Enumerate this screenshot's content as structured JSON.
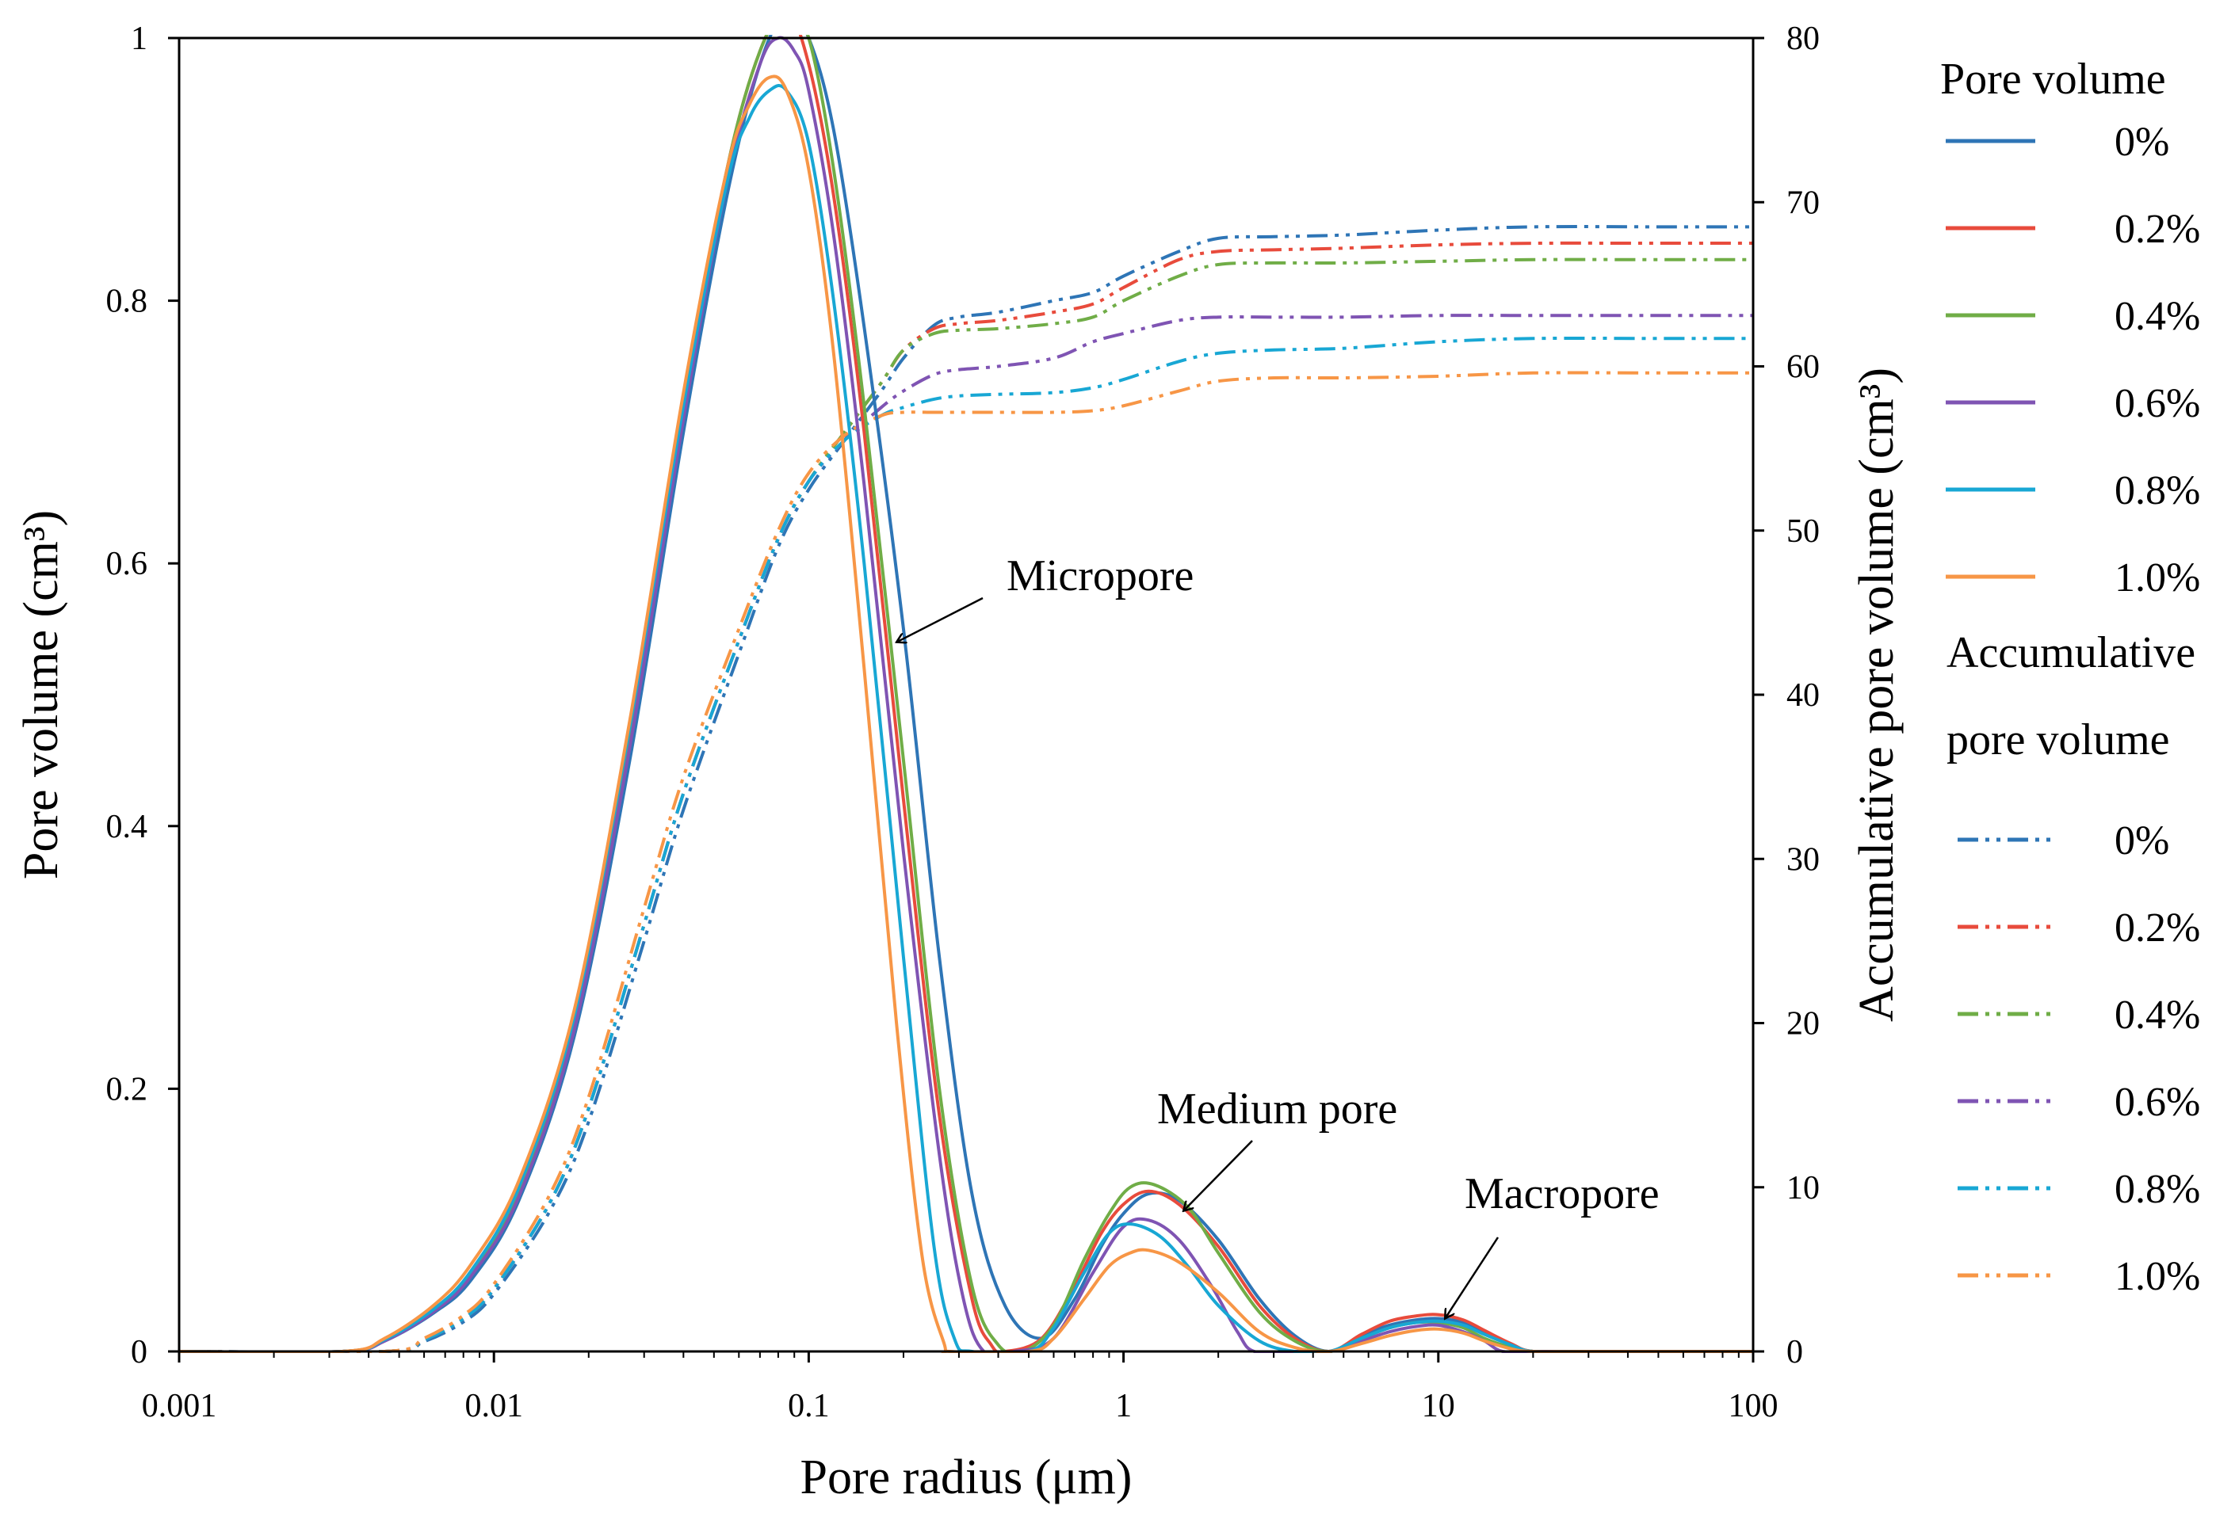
{
  "chart_data": {
    "type": "line",
    "xscale": "log",
    "xlabel": "Pore radius (μm)",
    "ylabel": "Pore volume (cm³)",
    "y2label": "Accumulative pore volume (cm³)",
    "xlim": [
      0.001,
      100
    ],
    "ylim": [
      0,
      1
    ],
    "y2lim": [
      0,
      80
    ],
    "x_ticks": [
      0.001,
      0.01,
      0.1,
      1,
      10,
      100
    ],
    "x_tick_labels": [
      "0.001",
      "0.01",
      "0.1",
      "1",
      "10",
      "100"
    ],
    "y_ticks": [
      0,
      0.2,
      0.4,
      0.6,
      0.8,
      1
    ],
    "y_tick_labels": [
      "0",
      "0.2",
      "0.4",
      "0.6",
      "0.8",
      "1"
    ],
    "y2_ticks": [
      0,
      10,
      20,
      30,
      40,
      50,
      60,
      70,
      80
    ],
    "y2_tick_labels": [
      "0",
      "10",
      "20",
      "30",
      "40",
      "50",
      "60",
      "70",
      "80"
    ],
    "legend": {
      "placement": "right",
      "pore_volume_title": "Pore volume",
      "accumulative_title_line1": "Accumulative",
      "accumulative_title_line2": "pore volume"
    },
    "annotations": [
      {
        "text": "Micropore",
        "points_to": {
          "x": 0.19,
          "y": 0.54
        }
      },
      {
        "text": "Medium pore",
        "points_to": {
          "x": 1.55,
          "y": 0.107
        }
      },
      {
        "text": "Macropore",
        "points_to": {
          "x": 10.5,
          "y": 0.025
        }
      }
    ],
    "series": [
      {
        "name": "0%",
        "color": "#2e75b6",
        "pore_volume": {
          "x": [
            0.001,
            0.0033,
            0.0045,
            0.0065,
            0.0085,
            0.012,
            0.018,
            0.027,
            0.04,
            0.055,
            0.07,
            0.085,
            0.1,
            0.12,
            0.15,
            0.2,
            0.26,
            0.33,
            0.42,
            0.55,
            0.7,
            0.85,
            1.0,
            1.2,
            1.5,
            2.0,
            2.7,
            3.5,
            4.5,
            5.7,
            7.0,
            8.5,
            10,
            12,
            14,
            17,
            20,
            30,
            100
          ],
          "y": [
            0,
            0,
            0.008,
            0.03,
            0.055,
            0.115,
            0.24,
            0.45,
            0.7,
            0.88,
            0.98,
            1.02,
            1.0,
            0.93,
            0.78,
            0.55,
            0.3,
            0.12,
            0.035,
            0.01,
            0.04,
            0.08,
            0.105,
            0.12,
            0.115,
            0.085,
            0.04,
            0.012,
            0,
            0.012,
            0.02,
            0.024,
            0.025,
            0.022,
            0.015,
            0.005,
            0,
            0,
            0
          ]
        },
        "accumulative": {
          "x": [
            0.001,
            0.0045,
            0.006,
            0.008,
            0.01,
            0.015,
            0.02,
            0.03,
            0.04,
            0.06,
            0.08,
            0.1,
            0.13,
            0.17,
            0.2,
            0.25,
            0.3,
            0.4,
            0.6,
            0.8,
            1.0,
            1.5,
            2.0,
            3.0,
            5,
            10,
            20,
            50,
            100
          ],
          "y": [
            0,
            0,
            0.6,
            1.8,
            3.5,
            8.5,
            14,
            25,
            33,
            42.5,
            49,
            52.5,
            55.5,
            58.5,
            60.5,
            62.5,
            63,
            63.3,
            64,
            64.5,
            65.5,
            67,
            67.8,
            67.9,
            68,
            68.3,
            68.5,
            68.5,
            68.5
          ]
        }
      },
      {
        "name": "0.2%",
        "color": "#e84b3c",
        "pore_volume": {
          "x": [
            0.001,
            0.0033,
            0.0045,
            0.0065,
            0.0085,
            0.012,
            0.018,
            0.027,
            0.04,
            0.055,
            0.07,
            0.085,
            0.1,
            0.12,
            0.15,
            0.2,
            0.26,
            0.33,
            0.38,
            0.42,
            0.55,
            0.7,
            0.85,
            1.0,
            1.2,
            1.5,
            2.0,
            2.7,
            3.5,
            4.5,
            5.7,
            7.0,
            8.5,
            10,
            12,
            14,
            17,
            20,
            30,
            100
          ],
          "y": [
            0,
            0,
            0.009,
            0.033,
            0.06,
            0.122,
            0.25,
            0.47,
            0.72,
            0.9,
            0.99,
            1.02,
            0.98,
            0.88,
            0.7,
            0.42,
            0.18,
            0.04,
            0.005,
            0,
            0.01,
            0.05,
            0.09,
            0.112,
            0.122,
            0.112,
            0.08,
            0.035,
            0.01,
            0,
            0.013,
            0.023,
            0.027,
            0.028,
            0.024,
            0.016,
            0.006,
            0,
            0,
            0
          ]
        },
        "accumulative": {
          "x": [
            0.001,
            0.0045,
            0.006,
            0.008,
            0.01,
            0.015,
            0.02,
            0.03,
            0.04,
            0.06,
            0.08,
            0.1,
            0.13,
            0.17,
            0.2,
            0.25,
            0.3,
            0.4,
            0.6,
            0.8,
            1.0,
            1.5,
            2.0,
            3.0,
            5,
            10,
            20,
            50,
            100
          ],
          "y": [
            0,
            0,
            0.7,
            2.0,
            3.8,
            9,
            14.8,
            26,
            34,
            43.3,
            49.5,
            53,
            56,
            59,
            61,
            62.3,
            62.6,
            62.8,
            63.3,
            63.8,
            64.8,
            66.5,
            67,
            67.1,
            67.2,
            67.4,
            67.5,
            67.5,
            67.5
          ]
        }
      },
      {
        "name": "0.4%",
        "color": "#70ad47",
        "pore_volume": {
          "x": [
            0.001,
            0.0033,
            0.0045,
            0.0065,
            0.0085,
            0.012,
            0.018,
            0.027,
            0.04,
            0.055,
            0.07,
            0.085,
            0.1,
            0.12,
            0.15,
            0.2,
            0.26,
            0.33,
            0.4,
            0.48,
            0.6,
            0.75,
            0.9,
            1.05,
            1.25,
            1.6,
            2.0,
            2.7,
            3.5,
            4.5,
            5.7,
            7.0,
            8.5,
            10,
            12,
            14,
            17,
            20,
            30,
            100
          ],
          "y": [
            0,
            0,
            0.009,
            0.033,
            0.06,
            0.122,
            0.25,
            0.47,
            0.72,
            0.9,
            0.99,
            1.02,
            1.0,
            0.9,
            0.72,
            0.45,
            0.2,
            0.05,
            0.005,
            0,
            0.02,
            0.07,
            0.105,
            0.125,
            0.127,
            0.11,
            0.075,
            0.03,
            0.008,
            0,
            0.01,
            0.018,
            0.022,
            0.022,
            0.018,
            0.01,
            0.003,
            0,
            0,
            0
          ]
        },
        "accumulative": {
          "x": [
            0.001,
            0.0045,
            0.006,
            0.008,
            0.01,
            0.015,
            0.02,
            0.03,
            0.04,
            0.06,
            0.08,
            0.1,
            0.13,
            0.17,
            0.2,
            0.25,
            0.3,
            0.4,
            0.6,
            0.8,
            1.0,
            1.5,
            2.0,
            3.0,
            5,
            10,
            20,
            50,
            100
          ],
          "y": [
            0,
            0,
            0.7,
            2.0,
            3.8,
            9,
            14.8,
            26,
            34,
            43.3,
            49.5,
            53,
            56,
            59,
            61,
            62,
            62.2,
            62.3,
            62.6,
            63,
            64,
            65.5,
            66.2,
            66.3,
            66.3,
            66.4,
            66.5,
            66.5,
            66.5
          ]
        }
      },
      {
        "name": "0.6%",
        "color": "#7f54b3",
        "pore_volume": {
          "x": [
            0.001,
            0.0033,
            0.0045,
            0.0065,
            0.0085,
            0.012,
            0.018,
            0.027,
            0.04,
            0.055,
            0.07,
            0.08,
            0.09,
            0.1,
            0.12,
            0.15,
            0.2,
            0.26,
            0.31,
            0.36,
            0.45,
            0.6,
            0.8,
            1.0,
            1.2,
            1.5,
            1.9,
            2.3,
            2.6,
            3.5,
            4.5,
            5.7,
            7.0,
            8.5,
            10,
            12,
            14,
            16,
            20,
            30,
            100
          ],
          "y": [
            0,
            0,
            0.008,
            0.031,
            0.058,
            0.118,
            0.245,
            0.46,
            0.71,
            0.89,
            0.98,
            1.0,
            0.99,
            0.96,
            0.85,
            0.66,
            0.38,
            0.15,
            0.04,
            0,
            0,
            0.01,
            0.06,
            0.095,
            0.1,
            0.085,
            0.05,
            0.015,
            0,
            0,
            0,
            0.008,
            0.015,
            0.019,
            0.02,
            0.015,
            0.008,
            0,
            0,
            0,
            0
          ]
        },
        "accumulative": {
          "x": [
            0.001,
            0.0045,
            0.006,
            0.008,
            0.01,
            0.015,
            0.02,
            0.03,
            0.04,
            0.06,
            0.08,
            0.1,
            0.13,
            0.17,
            0.2,
            0.25,
            0.3,
            0.4,
            0.6,
            0.8,
            1.0,
            1.5,
            2.0,
            3.0,
            5,
            10,
            20,
            50,
            100
          ],
          "y": [
            0,
            0,
            0.7,
            2.0,
            3.8,
            9,
            14.8,
            26,
            34,
            43.3,
            49.5,
            53,
            55.5,
            57.5,
            58.5,
            59.5,
            59.8,
            60,
            60.5,
            61.5,
            62,
            62.8,
            63,
            63,
            63,
            63.1,
            63.1,
            63.1,
            63.1
          ]
        }
      },
      {
        "name": "0.8%",
        "color": "#18a7d4",
        "pore_volume": {
          "x": [
            0.001,
            0.0033,
            0.0045,
            0.0065,
            0.0085,
            0.012,
            0.018,
            0.027,
            0.04,
            0.055,
            0.065,
            0.075,
            0.085,
            0.1,
            0.12,
            0.15,
            0.2,
            0.25,
            0.29,
            0.33,
            0.5,
            0.6,
            0.75,
            0.9,
            1.05,
            1.3,
            1.6,
            2.0,
            2.7,
            3.5,
            4.5,
            5.7,
            7.0,
            8.5,
            10,
            12,
            14,
            17,
            20,
            30,
            100
          ],
          "y": [
            0,
            0,
            0.009,
            0.033,
            0.062,
            0.125,
            0.255,
            0.475,
            0.72,
            0.89,
            0.94,
            0.96,
            0.96,
            0.92,
            0.8,
            0.6,
            0.3,
            0.08,
            0.01,
            0,
            0,
            0.018,
            0.06,
            0.09,
            0.097,
            0.088,
            0.065,
            0.035,
            0.008,
            0,
            0,
            0.01,
            0.018,
            0.022,
            0.023,
            0.02,
            0.013,
            0.005,
            0,
            0,
            0
          ]
        },
        "accumulative": {
          "x": [
            0.001,
            0.0045,
            0.006,
            0.008,
            0.01,
            0.015,
            0.02,
            0.03,
            0.04,
            0.06,
            0.08,
            0.1,
            0.13,
            0.17,
            0.2,
            0.25,
            0.3,
            0.4,
            0.6,
            0.8,
            1.0,
            1.5,
            2.0,
            3.0,
            5,
            10,
            20,
            50,
            100
          ],
          "y": [
            0,
            0,
            0.7,
            2.0,
            3.8,
            9,
            14.8,
            26,
            34,
            43.3,
            49.5,
            53,
            55.5,
            57,
            57.5,
            58,
            58.2,
            58.3,
            58.4,
            58.7,
            59.2,
            60.3,
            60.8,
            61,
            61.1,
            61.5,
            61.7,
            61.7,
            61.7
          ]
        }
      },
      {
        "name": "1.0%",
        "color": "#f79646",
        "pore_volume": {
          "x": [
            0.001,
            0.0033,
            0.0045,
            0.0065,
            0.0085,
            0.012,
            0.018,
            0.027,
            0.04,
            0.055,
            0.065,
            0.075,
            0.085,
            0.1,
            0.12,
            0.15,
            0.19,
            0.23,
            0.27,
            0.28,
            0.5,
            0.6,
            0.75,
            0.9,
            1.05,
            1.2,
            1.5,
            2.0,
            2.7,
            3.5,
            4.5,
            5.7,
            7.0,
            8.5,
            10,
            12,
            14,
            17,
            20,
            30,
            100
          ],
          "y": [
            0,
            0,
            0.01,
            0.036,
            0.067,
            0.13,
            0.26,
            0.48,
            0.73,
            0.9,
            0.95,
            0.97,
            0.96,
            0.9,
            0.76,
            0.52,
            0.25,
            0.07,
            0.005,
            0,
            0,
            0.01,
            0.04,
            0.065,
            0.075,
            0.077,
            0.068,
            0.045,
            0.015,
            0.003,
            0,
            0.006,
            0.012,
            0.016,
            0.017,
            0.014,
            0.008,
            0.002,
            0,
            0,
            0
          ]
        },
        "accumulative": {
          "x": [
            0.001,
            0.0045,
            0.006,
            0.008,
            0.01,
            0.015,
            0.02,
            0.03,
            0.04,
            0.06,
            0.08,
            0.1,
            0.13,
            0.17,
            0.2,
            0.25,
            0.3,
            0.4,
            0.6,
            0.8,
            1.0,
            1.5,
            2.0,
            3.0,
            5,
            10,
            20,
            50,
            100
          ],
          "y": [
            0,
            0,
            0.8,
            2.2,
            4.1,
            9.5,
            15.5,
            27,
            35,
            44,
            50,
            53.5,
            55.8,
            57,
            57.2,
            57.2,
            57.2,
            57.2,
            57.2,
            57.3,
            57.6,
            58.5,
            59.1,
            59.3,
            59.3,
            59.4,
            59.6,
            59.6,
            59.6
          ]
        }
      }
    ]
  }
}
